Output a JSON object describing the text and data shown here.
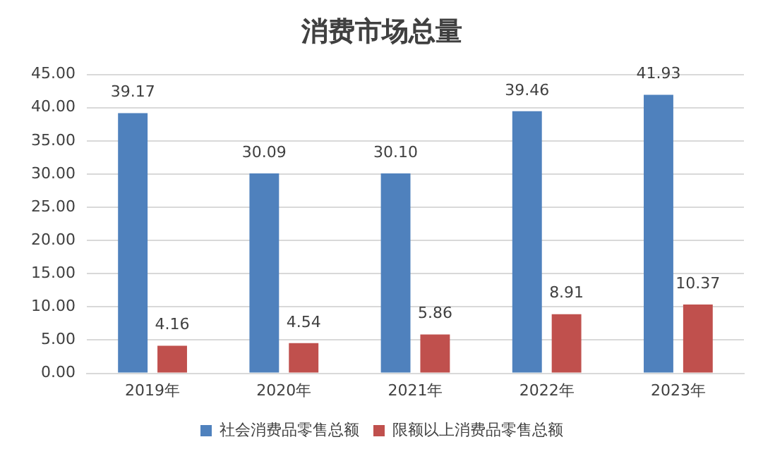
{
  "chart_data": {
    "type": "bar",
    "title": "消费市场总量",
    "categories": [
      "2019年",
      "2020年",
      "2021年",
      "2022年",
      "2023年"
    ],
    "series": [
      {
        "name": "社会消费品零售总额",
        "color": "#4f81bd",
        "values": [
          39.17,
          30.09,
          30.1,
          39.46,
          41.93
        ],
        "value_labels": [
          "39.17",
          "30.09",
          "30.10",
          "39.46",
          "41.93"
        ]
      },
      {
        "name": "限额以上消费品零售总额",
        "color": "#c0504d",
        "values": [
          4.16,
          4.54,
          5.86,
          8.91,
          10.37
        ],
        "value_labels": [
          "4.16",
          "4.54",
          "5.86",
          "8.91",
          "10.37"
        ]
      }
    ],
    "ylim": [
      0,
      45
    ],
    "yticks": [
      {
        "value": 0,
        "label": "0.00"
      },
      {
        "value": 5,
        "label": "5.00"
      },
      {
        "value": 10,
        "label": "10.00"
      },
      {
        "value": 15,
        "label": "15.00"
      },
      {
        "value": 20,
        "label": "20.00"
      },
      {
        "value": 25,
        "label": "25.00"
      },
      {
        "value": 30,
        "label": "30.00"
      },
      {
        "value": 35,
        "label": "35.00"
      },
      {
        "value": 40,
        "label": "40.00"
      },
      {
        "value": 45,
        "label": "45.00"
      }
    ],
    "grid": "y",
    "legend": "bottom"
  }
}
